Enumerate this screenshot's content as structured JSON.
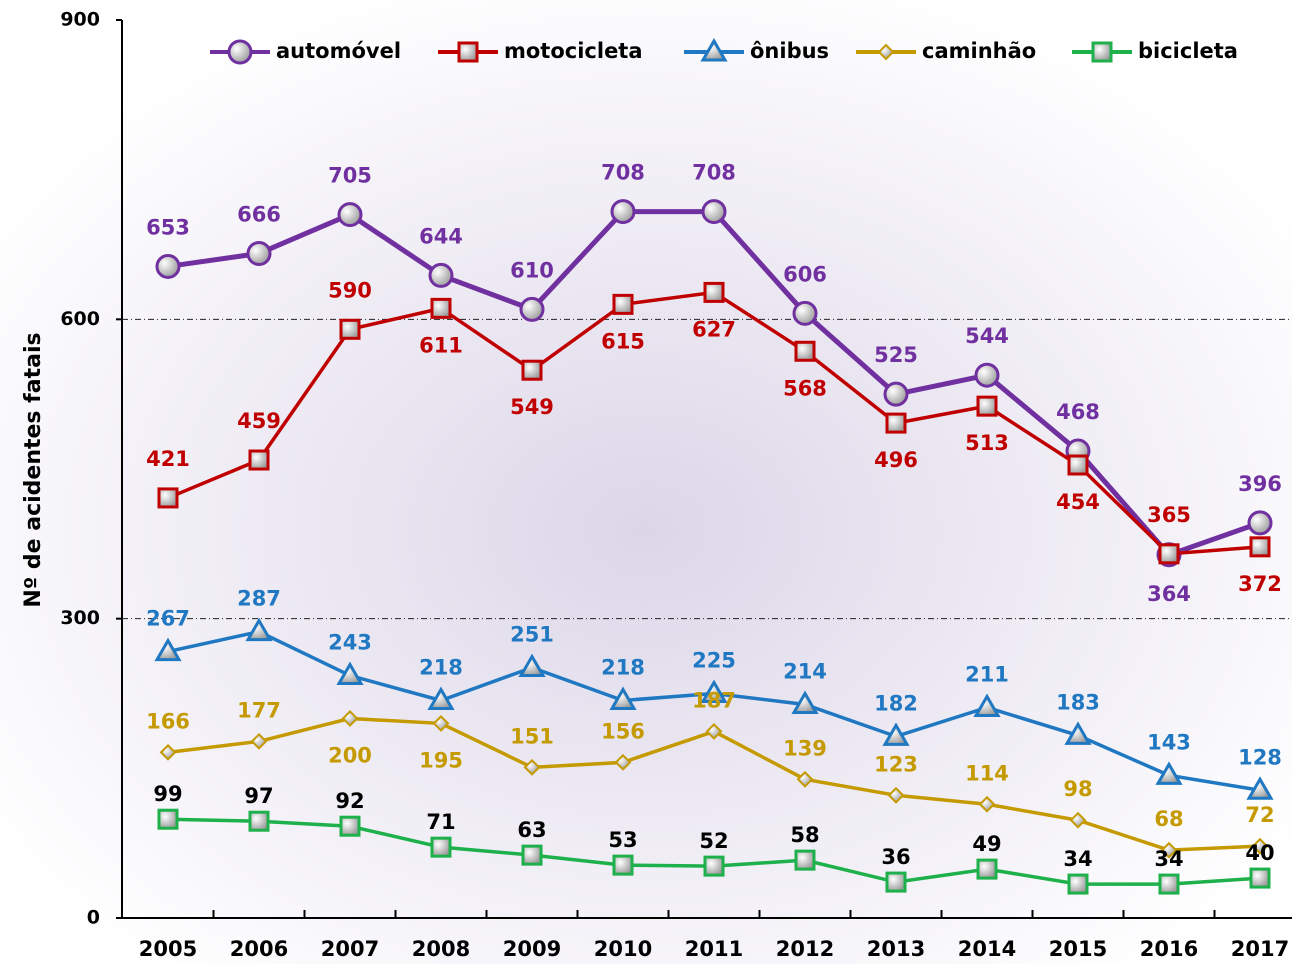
{
  "chart_data": {
    "type": "line",
    "y_label": "Nº de acidentes fatais",
    "categories": [
      "2005",
      "2006",
      "2007",
      "2008",
      "2009",
      "2010",
      "2011",
      "2012",
      "2013",
      "2014",
      "2015",
      "2016",
      "2017"
    ],
    "ylim": [
      0,
      900
    ],
    "yticks": [
      0,
      300,
      600,
      900
    ],
    "grid": true,
    "legend": "top",
    "series": [
      {
        "name": "automóvel",
        "color": "#7030a0",
        "marker": "circle",
        "values": [
          653,
          666,
          705,
          644,
          610,
          708,
          708,
          606,
          525,
          544,
          468,
          364,
          396
        ]
      },
      {
        "name": "motocicleta",
        "color": "#c00000",
        "marker": "square",
        "values": [
          421,
          459,
          590,
          611,
          549,
          615,
          627,
          568,
          496,
          513,
          454,
          365,
          372
        ]
      },
      {
        "name": "ônibus",
        "color": "#1f78c1",
        "marker": "triangle",
        "values": [
          267,
          287,
          243,
          218,
          251,
          218,
          225,
          214,
          182,
          211,
          183,
          143,
          128
        ]
      },
      {
        "name": "caminhão",
        "color": "#c59a00",
        "marker": "diamond",
        "values": [
          166,
          177,
          200,
          195,
          151,
          156,
          187,
          139,
          123,
          114,
          98,
          68,
          72
        ]
      },
      {
        "name": "bicicleta",
        "color": "#1db04b",
        "marker": "square",
        "values": [
          99,
          97,
          92,
          71,
          63,
          53,
          52,
          58,
          36,
          49,
          34,
          34,
          40
        ]
      }
    ]
  }
}
